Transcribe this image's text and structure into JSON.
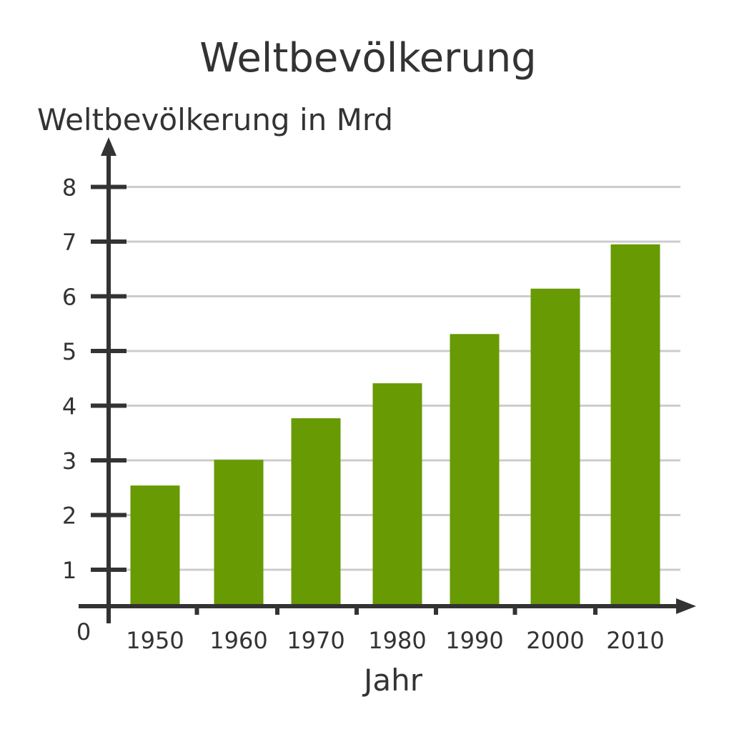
{
  "chart_data": {
    "type": "bar",
    "title": "Weltbevölkerung",
    "ylabel": "Weltbevölkerung in Mrd",
    "xlabel": "Jahr",
    "categories": [
      "1950",
      "1960",
      "1970",
      "1980",
      "1990",
      "2000",
      "2010"
    ],
    "values": [
      2.54,
      3.01,
      3.77,
      4.41,
      5.31,
      6.14,
      6.95
    ],
    "ylim": [
      0,
      8
    ],
    "yticks": [
      1,
      2,
      3,
      4,
      5,
      6,
      7,
      8
    ],
    "origin_label": "0",
    "grid": true,
    "bar_color": "#689a03",
    "grid_color": "#cccccc",
    "axis_color": "#333333"
  }
}
